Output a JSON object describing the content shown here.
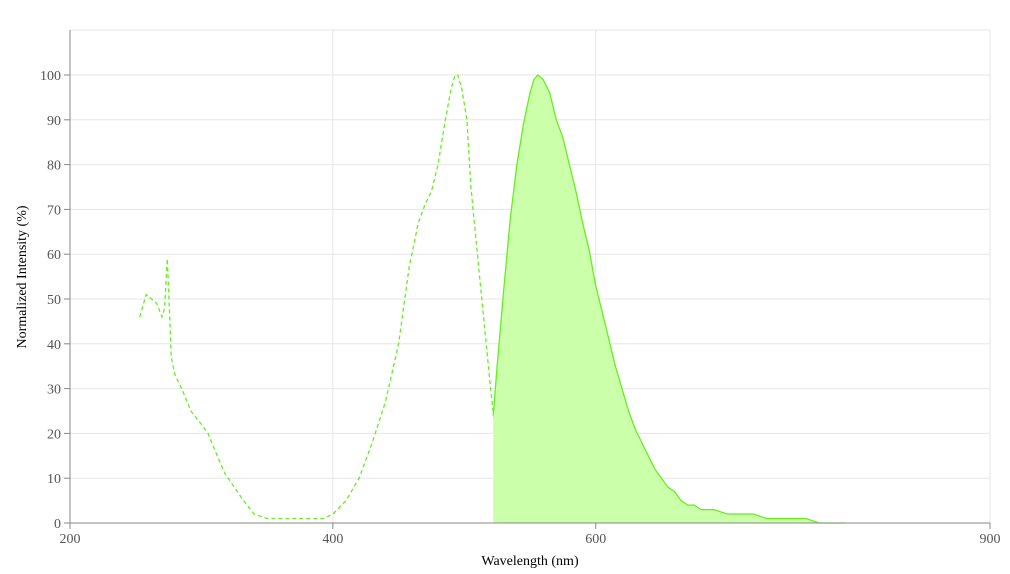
{
  "chart_data": {
    "type": "area",
    "title": "",
    "xlabel": "Wavelength (nm)",
    "ylabel": "Normalized Intensity (%)",
    "xlim": [
      200,
      900
    ],
    "ylim": [
      0,
      100
    ],
    "x_ticks": [
      200,
      400,
      600,
      900
    ],
    "y_ticks": [
      0,
      10,
      20,
      30,
      40,
      50,
      60,
      70,
      80,
      90,
      100
    ],
    "grid": true,
    "legend": "none",
    "series": [
      {
        "kind": "excitation",
        "style": "dashed-line",
        "color": "#66ee22",
        "points": [
          [
            253,
            46
          ],
          [
            258,
            51
          ],
          [
            262,
            50
          ],
          [
            266,
            49
          ],
          [
            270,
            46
          ],
          [
            272,
            48
          ],
          [
            274,
            59
          ],
          [
            276,
            45
          ],
          [
            277,
            37
          ],
          [
            280,
            33
          ],
          [
            285,
            30
          ],
          [
            292,
            25
          ],
          [
            300,
            22
          ],
          [
            305,
            20
          ],
          [
            312,
            15
          ],
          [
            318,
            11
          ],
          [
            325,
            8
          ],
          [
            332,
            5
          ],
          [
            340,
            2
          ],
          [
            350,
            1
          ],
          [
            360,
            1
          ],
          [
            370,
            1
          ],
          [
            380,
            1
          ],
          [
            393,
            1
          ],
          [
            400,
            2
          ],
          [
            410,
            5
          ],
          [
            420,
            10
          ],
          [
            430,
            18
          ],
          [
            440,
            27
          ],
          [
            450,
            40
          ],
          [
            458,
            57
          ],
          [
            465,
            67
          ],
          [
            470,
            71
          ],
          [
            475,
            74
          ],
          [
            480,
            80
          ],
          [
            485,
            89
          ],
          [
            490,
            97
          ],
          [
            493,
            100
          ],
          [
            495,
            100
          ],
          [
            498,
            97
          ],
          [
            502,
            90
          ],
          [
            505,
            75
          ],
          [
            510,
            60
          ],
          [
            515,
            45
          ],
          [
            520,
            30
          ],
          [
            525,
            17
          ],
          [
            530,
            10
          ]
        ]
      },
      {
        "kind": "emission",
        "style": "filled-area",
        "color": "#66ee22",
        "fill": "#ccffaa",
        "points": [
          [
            522,
            24
          ],
          [
            525,
            35
          ],
          [
            530,
            52
          ],
          [
            535,
            68
          ],
          [
            540,
            80
          ],
          [
            545,
            89
          ],
          [
            550,
            96
          ],
          [
            553,
            99
          ],
          [
            556,
            100
          ],
          [
            560,
            99
          ],
          [
            565,
            96
          ],
          [
            570,
            90
          ],
          [
            575,
            86
          ],
          [
            580,
            80
          ],
          [
            585,
            74
          ],
          [
            590,
            67
          ],
          [
            595,
            61
          ],
          [
            600,
            53
          ],
          [
            605,
            47
          ],
          [
            610,
            41
          ],
          [
            615,
            35
          ],
          [
            620,
            30
          ],
          [
            625,
            25
          ],
          [
            630,
            21
          ],
          [
            635,
            18
          ],
          [
            640,
            15
          ],
          [
            645,
            12
          ],
          [
            650,
            10
          ],
          [
            655,
            8
          ],
          [
            660,
            7
          ],
          [
            665,
            5
          ],
          [
            670,
            4
          ],
          [
            675,
            4
          ],
          [
            680,
            3
          ],
          [
            690,
            3
          ],
          [
            700,
            2
          ],
          [
            720,
            2
          ],
          [
            730,
            1
          ],
          [
            760,
            1
          ],
          [
            770,
            0
          ],
          [
            790,
            0
          ]
        ]
      }
    ]
  },
  "colors": {
    "grid": "#e6e6e6",
    "axis": "#888888",
    "series": "#66ee22",
    "fill": "#ccffaa"
  }
}
